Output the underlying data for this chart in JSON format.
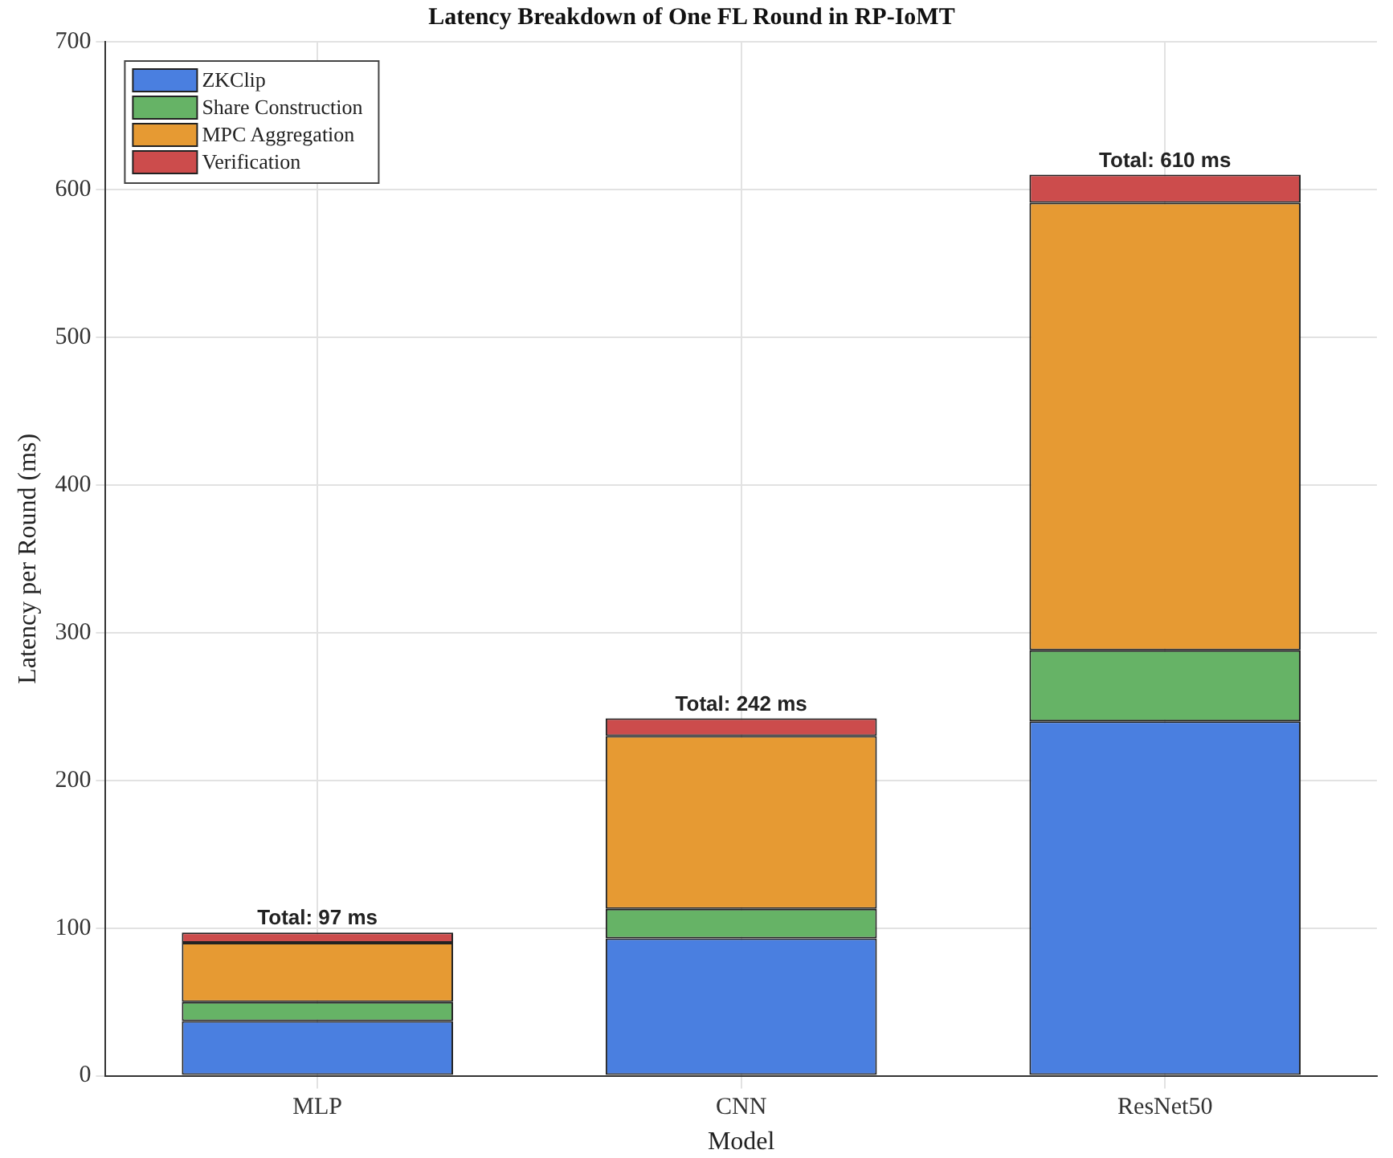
{
  "chart_data": {
    "type": "bar",
    "title": "Latency Breakdown of One FL Round in RP-IoMT",
    "xlabel": "Model",
    "ylabel": "Latency per Round (ms)",
    "categories": [
      "MLP",
      "CNN",
      "ResNet50"
    ],
    "series": [
      {
        "name": "ZKClip",
        "color": "#4a7fe0",
        "values": [
          37,
          93,
          240
        ]
      },
      {
        "name": "Share Construction",
        "color": "#66b366",
        "values": [
          13,
          20,
          48
        ]
      },
      {
        "name": "MPC Aggregation",
        "color": "#e69a33",
        "values": [
          40,
          117,
          303
        ]
      },
      {
        "name": "Verification",
        "color": "#cc4c4c",
        "values": [
          7,
          12,
          19
        ]
      }
    ],
    "stacked": true,
    "totals": [
      "Total: 97 ms",
      "Total: 242 ms",
      "Total: 610 ms"
    ],
    "ylim": [
      0,
      700
    ],
    "yticks": [
      0,
      100,
      200,
      300,
      400,
      500,
      600,
      700
    ],
    "grid": true,
    "legend": "top left"
  }
}
